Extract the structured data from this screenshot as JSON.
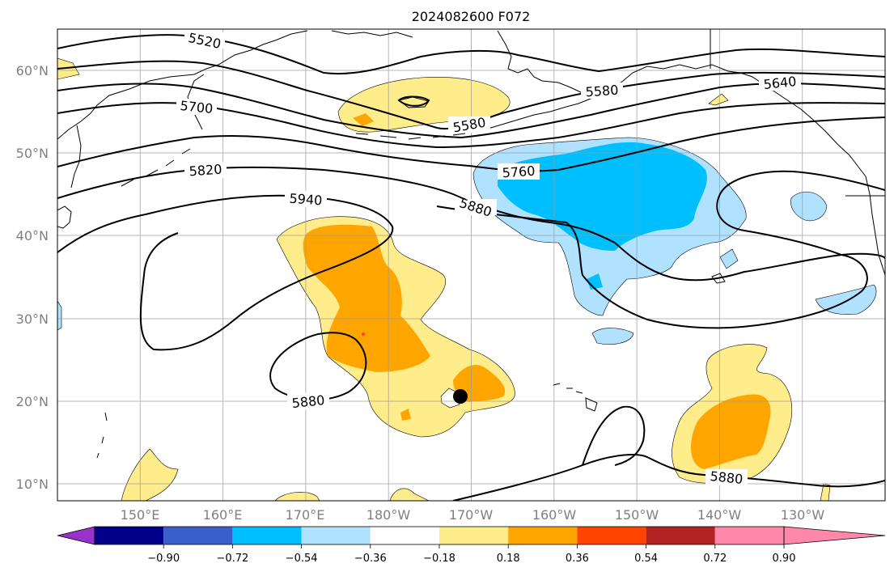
{
  "title": "2024082600 F072",
  "map": {
    "lat_ticks": [
      "60°N",
      "50°N",
      "40°N",
      "30°N",
      "20°N",
      "10°N"
    ],
    "lon_ticks": [
      "150°E",
      "160°E",
      "170°E",
      "180°W",
      "170°W",
      "160°W",
      "150°W",
      "140°W",
      "130°W"
    ],
    "extent": {
      "lon_min": 140,
      "lon_max": 240,
      "lat_min": 8,
      "lat_max": 65
    },
    "gridlines": true
  },
  "contour_labels": {
    "c5520": "5520",
    "c5700": "5700",
    "c5580a": "5580",
    "c5580b": "5580",
    "c5640": "5640",
    "c5760": "5760",
    "c5820": "5820",
    "c5940": "5940",
    "c5880a": "5880",
    "c5880b": "5880",
    "c5880c": "5880"
  },
  "colorbar": {
    "ticks": [
      "−0.90",
      "−0.72",
      "−0.54",
      "−0.36",
      "−0.18",
      "0.18",
      "0.36",
      "0.54",
      "0.72",
      "0.90"
    ],
    "colors": [
      "#9932cc",
      "#00008b",
      "#3a5fcd",
      "#00bfff",
      "#b0e2ff",
      "#ffffff",
      "#ffec8b",
      "#ffa500",
      "#ff4500",
      "#b22222",
      "#ff88aa"
    ]
  },
  "colors": {
    "light_yellow": "#ffec8b",
    "orange": "#ffa500",
    "light_blue": "#b0e2ff",
    "deep_sky": "#00bfff"
  }
}
